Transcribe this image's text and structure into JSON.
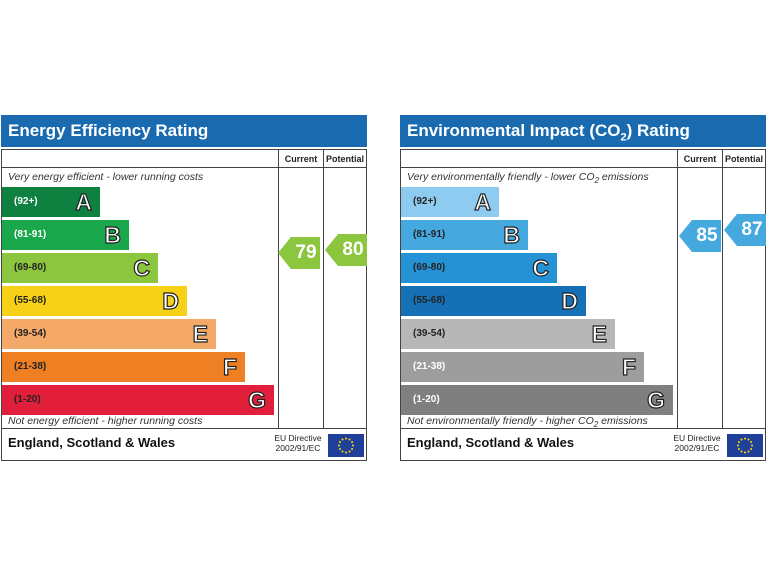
{
  "chart_data": [
    {
      "type": "bar",
      "title": "Energy Efficiency Rating",
      "column_headers": {
        "current": "Current",
        "potential": "Potential"
      },
      "top_note": "Very energy efficient - lower running costs",
      "bottom_note": "Not energy efficient - higher running costs",
      "bands": [
        {
          "letter": "A",
          "range": "(92+)",
          "color": "#0e8140",
          "range_color": "#ffffff"
        },
        {
          "letter": "B",
          "range": "(81-91)",
          "color": "#1aa64b",
          "range_color": "#ffffff"
        },
        {
          "letter": "C",
          "range": "(69-80)",
          "color": "#8cc63f",
          "range_color": "#222222"
        },
        {
          "letter": "D",
          "range": "(55-68)",
          "color": "#f7d117",
          "range_color": "#222222"
        },
        {
          "letter": "E",
          "range": "(39-54)",
          "color": "#f4a969",
          "range_color": "#222222"
        },
        {
          "letter": "F",
          "range": "(21-38)",
          "color": "#ee7f22",
          "range_color": "#222222"
        },
        {
          "letter": "G",
          "range": "(1-20)",
          "color": "#e21f3b",
          "range_color": "#222222"
        }
      ],
      "current": {
        "value": "79",
        "color": "#8cc63f"
      },
      "potential": {
        "value": "80",
        "color": "#8cc63f"
      },
      "footer": {
        "region": "England, Scotland & Wales",
        "directive_line1": "EU Directive",
        "directive_line2": "2002/91/EC"
      }
    },
    {
      "type": "bar",
      "title_main": "Environmental Impact (CO",
      "title_sub": "2",
      "title_end": ") Rating",
      "column_headers": {
        "current": "Current",
        "potential": "Potential"
      },
      "top_note_main": "Very environmentally friendly - lower CO",
      "top_note_sub": "2",
      "top_note_end": " emissions",
      "bottom_note_main": "Not environmentally friendly - higher CO",
      "bottom_note_sub": "2",
      "bottom_note_end": " emissions",
      "bands": [
        {
          "letter": "A",
          "range": "(92+)",
          "color": "#8ecbf0",
          "range_color": "#222222"
        },
        {
          "letter": "B",
          "range": "(81-91)",
          "color": "#45a9e0",
          "range_color": "#222222"
        },
        {
          "letter": "C",
          "range": "(69-80)",
          "color": "#2492d4",
          "range_color": "#222222"
        },
        {
          "letter": "D",
          "range": "(55-68)",
          "color": "#1570b5",
          "range_color": "#222222"
        },
        {
          "letter": "E",
          "range": "(39-54)",
          "color": "#b7b7b7",
          "range_color": "#222222"
        },
        {
          "letter": "F",
          "range": "(21-38)",
          "color": "#9d9d9d",
          "range_color": "#ffffff"
        },
        {
          "letter": "G",
          "range": "(1-20)",
          "color": "#7f7f7f",
          "range_color": "#ffffff"
        }
      ],
      "current": {
        "value": "85",
        "color": "#45a9e0"
      },
      "potential": {
        "value": "87",
        "color": "#45a9e0"
      },
      "footer": {
        "region": "England, Scotland & Wales",
        "directive_line1": "EU Directive",
        "directive_line2": "2002/91/EC"
      }
    }
  ]
}
